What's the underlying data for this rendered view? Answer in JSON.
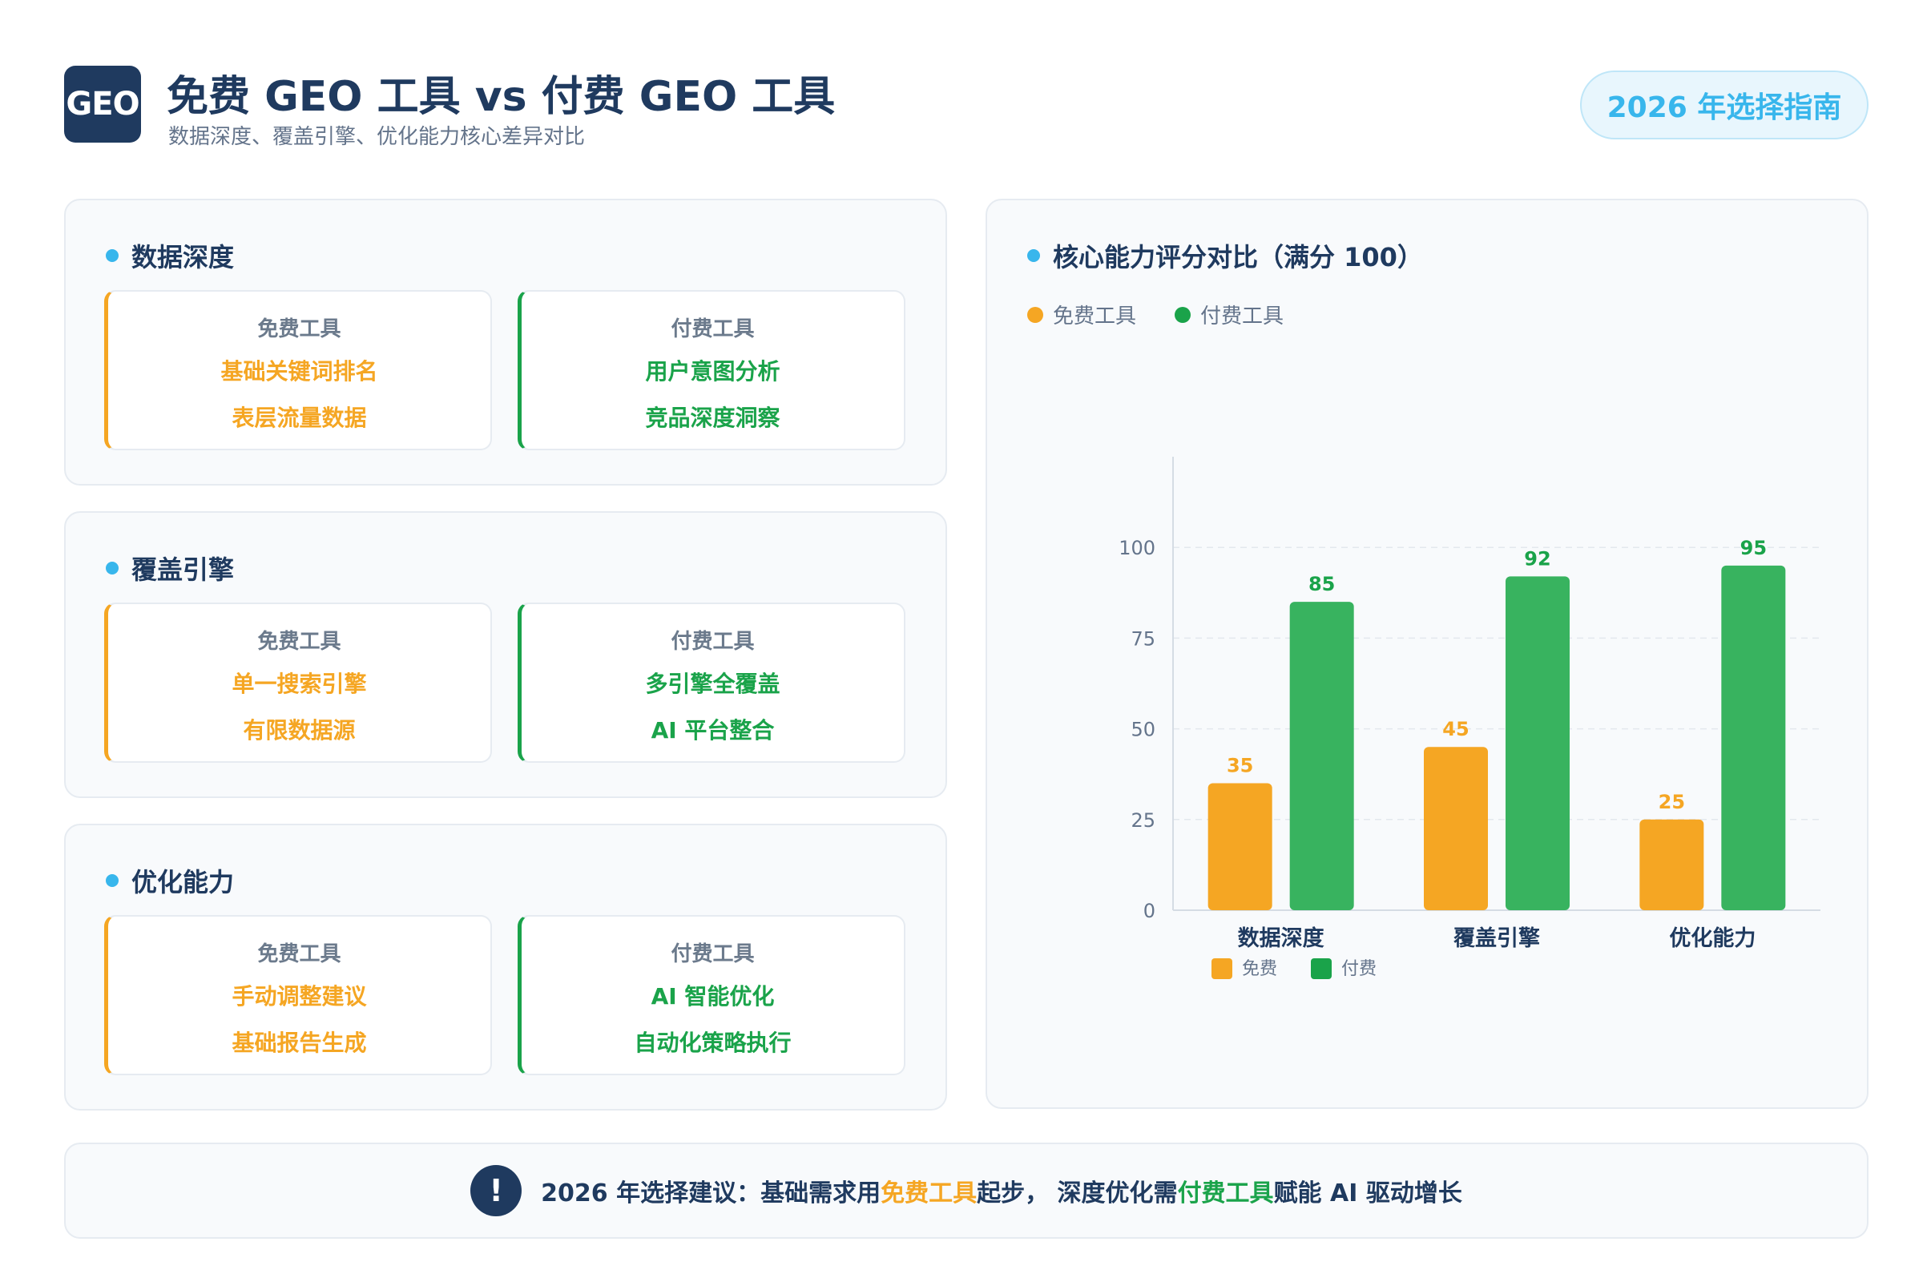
{
  "header": {
    "logo_text": "GEO",
    "title": "免费 GEO 工具 vs 付费 GEO 工具",
    "subtitle": "数据深度、覆盖引擎、优化能力核心差异对比",
    "badge": "2026 年选择指南"
  },
  "sections": [
    {
      "title": "数据深度",
      "free": {
        "label": "免费工具",
        "lines": [
          "基础关键词排名",
          "表层流量数据"
        ]
      },
      "paid": {
        "label": "付费工具",
        "lines": [
          "用户意图分析",
          "竞品深度洞察"
        ]
      }
    },
    {
      "title": "覆盖引擎",
      "free": {
        "label": "免费工具",
        "lines": [
          "单一搜索引擎",
          "有限数据源"
        ]
      },
      "paid": {
        "label": "付费工具",
        "lines": [
          "多引擎全覆盖",
          "AI 平台整合"
        ]
      }
    },
    {
      "title": "优化能力",
      "free": {
        "label": "免费工具",
        "lines": [
          "手动调整建议",
          "基础报告生成"
        ]
      },
      "paid": {
        "label": "付费工具",
        "lines": [
          "AI 智能优化",
          "自动化策略执行"
        ]
      }
    }
  ],
  "chart_panel": {
    "title": "核心能力评分对比（满分 100）",
    "legend_top": [
      "免费工具",
      "付费工具"
    ]
  },
  "chart_data": {
    "type": "bar",
    "categories": [
      "数据深度",
      "覆盖引擎",
      "优化能力"
    ],
    "series": [
      {
        "name": "免费",
        "values": [
          35,
          45,
          25
        ],
        "color": "#f5a623"
      },
      {
        "name": "付费",
        "values": [
          85,
          92,
          95
        ],
        "color": "#1aa34a"
      }
    ],
    "yticks": [
      0,
      25,
      50,
      75,
      100
    ],
    "ylim": [
      0,
      125
    ],
    "grid": true,
    "legend": "bottom-left"
  },
  "banner": {
    "icon": "exclamation-icon",
    "prefix": "2026 年选择建议：基础需求用",
    "free_word": "免费工具",
    "middle": "起步， 深度优化需",
    "paid_word": "付费工具",
    "suffix": "赋能 AI 驱动增长"
  },
  "colors": {
    "navy": "#1f3a5f",
    "accent": "#38b6ec",
    "free": "#f5a623",
    "paid": "#1aa34a"
  }
}
